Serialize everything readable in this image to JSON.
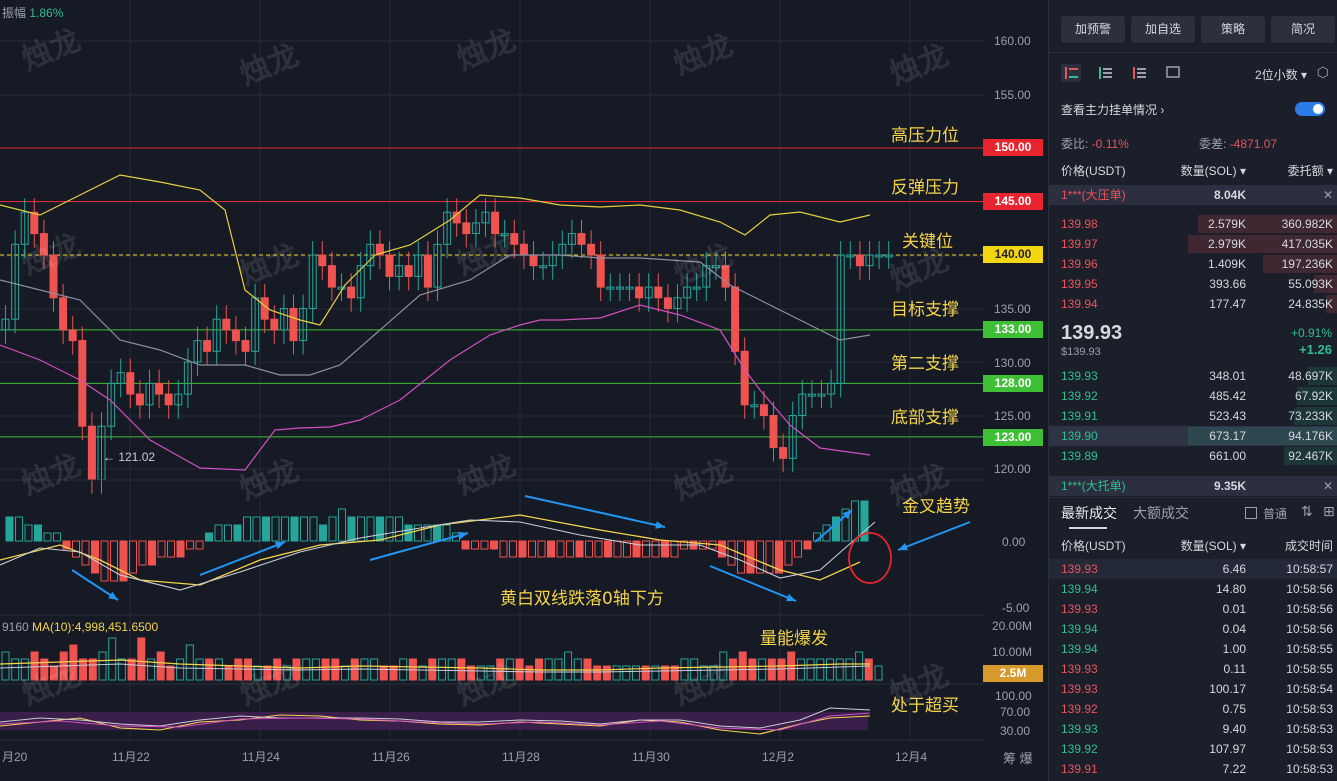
{
  "top_info": {
    "label": "振幅",
    "value": "1.86%"
  },
  "watermark": "烛龙",
  "annotations": {
    "high_pressure": "高压力位",
    "rebound_pressure": "反弹压力",
    "key_level": "关键位",
    "target_support": "目标支撑",
    "second_support": "第二支撑",
    "bottom_support": "底部支撑",
    "golden_cross": "金叉趋势",
    "macd_note": "黄白双线跌落0轴下方",
    "volume_burst": "量能爆发",
    "overbought": "处于超买"
  },
  "price_axis": [
    "160.00",
    "155.00",
    "150.00",
    "145.00",
    "140.00",
    "135.00",
    "130.00",
    "125.00",
    "120.00"
  ],
  "price_tags": [
    {
      "label": "150.00",
      "color": "#e8242f"
    },
    {
      "label": "145.00",
      "color": "#e8242f"
    },
    {
      "label": "140.00",
      "color": "#f3d512"
    },
    {
      "label": "133.00",
      "color": "#3fbf35"
    },
    {
      "label": "128.00",
      "color": "#3fbf35"
    },
    {
      "label": "123.00",
      "color": "#3fbf35"
    }
  ],
  "low_marker": "← 121.02",
  "macd_axis": [
    "0.00",
    "-5.00"
  ],
  "vol_axis": [
    "20.00M",
    "10.00M"
  ],
  "vol_tag": "2.5M",
  "ma_info": {
    "prefix": "9160",
    "ma": "MA(10):4,998,451.6500"
  },
  "rsi_axis": [
    "100.00",
    "70.00",
    "30.00"
  ],
  "dates": [
    "月20",
    "11月22",
    "11月24",
    "11月26",
    "11月28",
    "11月30",
    "12月2",
    "12月4"
  ],
  "corner_buttons": "筹 爆",
  "colors": {
    "up": "#26a69a",
    "down": "#ef5350",
    "bg": "#161a25",
    "yellow": "#f5d44a"
  },
  "panel": {
    "buttons": [
      "加预警",
      "加自选",
      "策略",
      "简况"
    ],
    "precision": "2位小数",
    "main_orders_link": "查看主力挂单情况",
    "ratio_label": "委比:",
    "ratio_value": "-0.11%",
    "diff_label": "委差:",
    "diff_value": "-4871.07",
    "headers": {
      "price": "价格(USDT)",
      "qty": "数量(SOL)",
      "amount": "委托额"
    },
    "big_ask": {
      "label": "1***(大压单)",
      "qty": "8.04K"
    },
    "asks": [
      {
        "price": "139.98",
        "qty": "2.579K",
        "amount": "360.982K",
        "depth": 0.93
      },
      {
        "price": "139.97",
        "qty": "2.979K",
        "amount": "417.035K",
        "depth": 1.0
      },
      {
        "price": "139.96",
        "qty": "1.409K",
        "amount": "197.236K",
        "depth": 0.5
      },
      {
        "price": "139.95",
        "qty": "393.66",
        "amount": "55.093K",
        "depth": 0.16
      },
      {
        "price": "139.94",
        "qty": "177.47",
        "amount": "24.835K",
        "depth": 0.08
      }
    ],
    "last_price": "139.93",
    "last_price_usd": "$139.93",
    "change_pct": "+0.91%",
    "change_abs": "+1.26",
    "bids": [
      {
        "price": "139.93",
        "qty": "348.01",
        "amount": "48.697K",
        "depth": 0.2
      },
      {
        "price": "139.92",
        "qty": "485.42",
        "amount": "67.92K",
        "depth": 0.27
      },
      {
        "price": "139.91",
        "qty": "523.43",
        "amount": "73.233K",
        "depth": 0.29
      },
      {
        "price": "139.90",
        "qty": "673.17",
        "amount": "94.176K",
        "depth": 1.0
      },
      {
        "price": "139.89",
        "qty": "661.00",
        "amount": "92.467K",
        "depth": 0.36
      }
    ],
    "big_bid": {
      "label": "1***(大托单)",
      "qty": "9.35K"
    },
    "trade_tabs": {
      "latest": "最新成交",
      "large": "大额成交",
      "normal": "普通"
    },
    "trade_headers": {
      "price": "价格(USDT)",
      "qty": "数量(SOL)",
      "time": "成交时间"
    },
    "trades": [
      {
        "price": "139.93",
        "qty": "6.46",
        "time": "10:58:57",
        "side": "sell"
      },
      {
        "price": "139.94",
        "qty": "14.80",
        "time": "10:58:56",
        "side": "buy"
      },
      {
        "price": "139.93",
        "qty": "0.01",
        "time": "10:58:56",
        "side": "sell"
      },
      {
        "price": "139.94",
        "qty": "0.04",
        "time": "10:58:56",
        "side": "buy"
      },
      {
        "price": "139.94",
        "qty": "1.00",
        "time": "10:58:55",
        "side": "buy"
      },
      {
        "price": "139.93",
        "qty": "0.11",
        "time": "10:58:55",
        "side": "sell"
      },
      {
        "price": "139.93",
        "qty": "100.17",
        "time": "10:58:54",
        "side": "sell"
      },
      {
        "price": "139.92",
        "qty": "0.75",
        "time": "10:58:53",
        "side": "sell"
      },
      {
        "price": "139.93",
        "qty": "9.40",
        "time": "10:58:53",
        "side": "buy"
      },
      {
        "price": "139.92",
        "qty": "107.97",
        "time": "10:58:53",
        "side": "buy"
      },
      {
        "price": "139.91",
        "qty": "7.22",
        "time": "10:58:53",
        "side": "sell"
      }
    ]
  }
}
